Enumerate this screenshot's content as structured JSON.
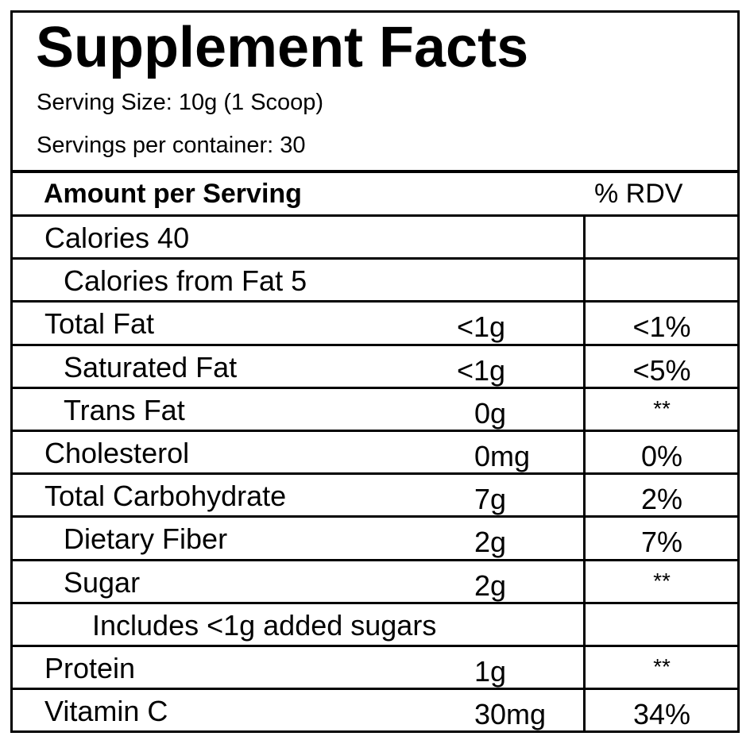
{
  "title": "Supplement Facts",
  "serving_size": "Serving Size: 10g (1 Scoop)",
  "servings_per_container": "Servings per container: 30",
  "header": {
    "amount": "Amount per Serving",
    "rdv": "% RDV"
  },
  "rows": [
    {
      "label": "Calories 40",
      "indent": 0,
      "amount": "",
      "rdv": ""
    },
    {
      "label": "Calories from Fat 5",
      "indent": 1,
      "amount": "",
      "rdv": ""
    },
    {
      "label": "Total Fat",
      "indent": 0,
      "amount": "<1g",
      "rdv": "<1%"
    },
    {
      "label": "Saturated Fat",
      "indent": 1,
      "amount": "<1g",
      "rdv": "<5%"
    },
    {
      "label": "Trans Fat",
      "indent": 1,
      "amount": "0g",
      "rdv": "**"
    },
    {
      "label": "Cholesterol",
      "indent": 0,
      "amount": "0mg",
      "rdv": "0%"
    },
    {
      "label": "Total Carbohydrate",
      "indent": 0,
      "amount": "7g",
      "rdv": "2%"
    },
    {
      "label": "Dietary Fiber",
      "indent": 1,
      "amount": "2g",
      "rdv": "7%"
    },
    {
      "label": "Sugar",
      "indent": 1,
      "amount": "2g",
      "rdv": "**"
    },
    {
      "label": "Includes <1g added sugars",
      "indent": 2,
      "amount": "",
      "rdv": ""
    },
    {
      "label": "Protein",
      "indent": 0,
      "amount": "1g",
      "rdv": "**"
    },
    {
      "label": "Vitamin C",
      "indent": 0,
      "amount": "30mg",
      "rdv": "34%"
    }
  ]
}
